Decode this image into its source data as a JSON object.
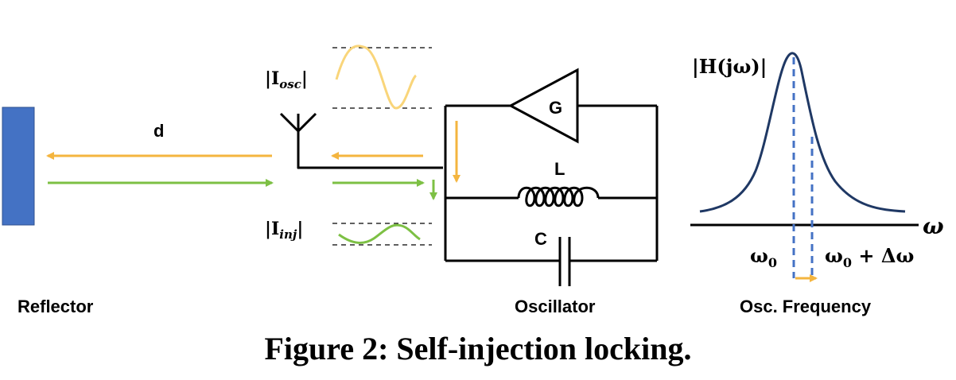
{
  "colors": {
    "reflector": "#4472C4",
    "orange": "#F4B53F",
    "green": "#7DC044",
    "wave_orange": "#F9D57A",
    "black": "#000000",
    "curve": "#1F3864",
    "dashed_blue": "#4472C4"
  },
  "labels": {
    "distance": "d",
    "reflector": "Reflector",
    "oscillator": "Oscillator",
    "osc_frequency": "Osc. Frequency",
    "gain": "G",
    "inductor": "L",
    "capacitor": "C",
    "i_osc": "|I",
    "i_osc_sub": "osc",
    "i_osc_close": "|",
    "i_inj": "|I",
    "i_inj_sub": "inj",
    "i_inj_close": "|",
    "h_label": "|H(jω)|",
    "omega_axis": "ω",
    "omega0": "ω",
    "omega0_sub": "0",
    "omega_shift_a": "ω",
    "omega_shift_sub": "0",
    "omega_shift_b": " + Δω"
  },
  "caption": "Figure 2: Self-injection locking.",
  "icons": {
    "antenna": "antenna-icon",
    "amplifier": "amplifier-triangle-icon",
    "inductor": "inductor-coil-icon",
    "capacitor": "capacitor-icon"
  }
}
